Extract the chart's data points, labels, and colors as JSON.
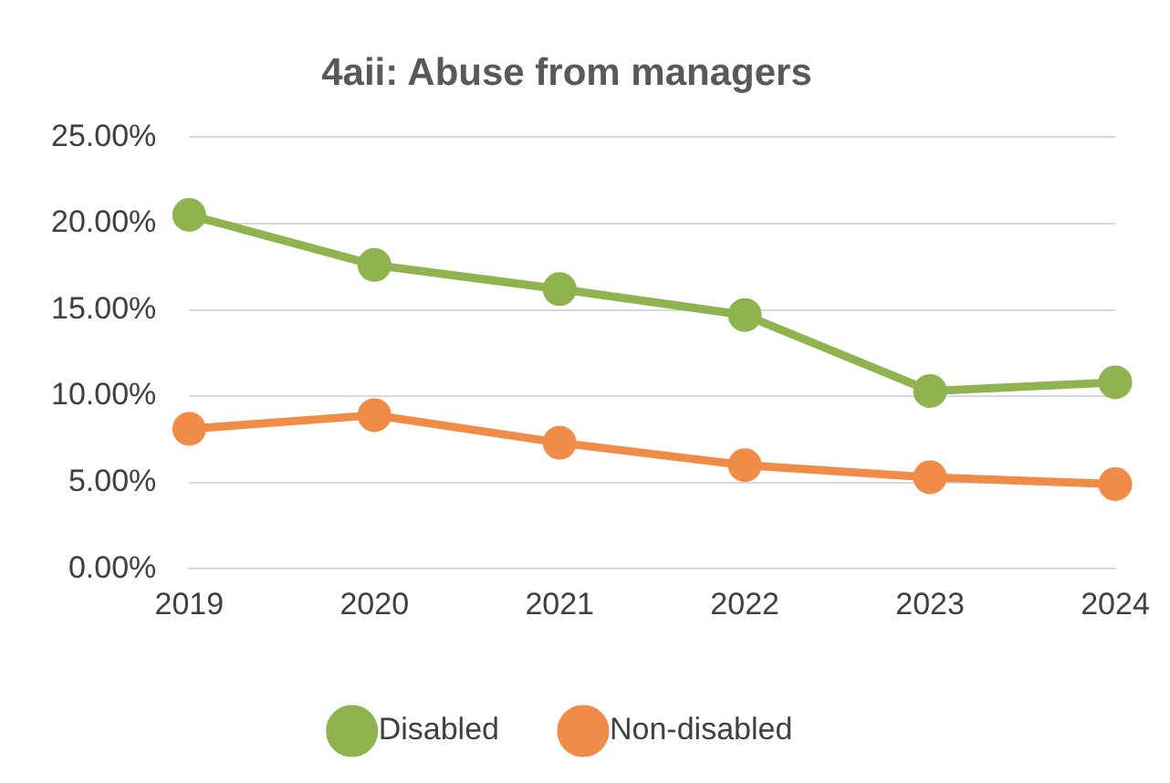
{
  "chart_data": {
    "type": "line",
    "title": "4aii: Abuse from managers",
    "categories": [
      "2019",
      "2020",
      "2021",
      "2022",
      "2023",
      "2024"
    ],
    "series": [
      {
        "name": "Disabled",
        "color": "#8fb34e",
        "values": [
          20.5,
          17.6,
          16.2,
          14.7,
          10.3,
          10.8
        ]
      },
      {
        "name": "Non-disabled",
        "color": "#f08c48",
        "values": [
          8.1,
          8.9,
          7.3,
          6.0,
          5.3,
          4.9
        ]
      }
    ],
    "ylim": [
      0,
      25
    ],
    "yticks": [
      {
        "value": 0,
        "label": "0.00%"
      },
      {
        "value": 5,
        "label": "5.00%"
      },
      {
        "value": 10,
        "label": "10.00%"
      },
      {
        "value": 15,
        "label": "15.00%"
      },
      {
        "value": 20,
        "label": "20.00%"
      },
      {
        "value": 25,
        "label": "25.00%"
      }
    ],
    "grid": "y",
    "legend": "bottom",
    "marker": "circle",
    "line_style": "solid"
  }
}
